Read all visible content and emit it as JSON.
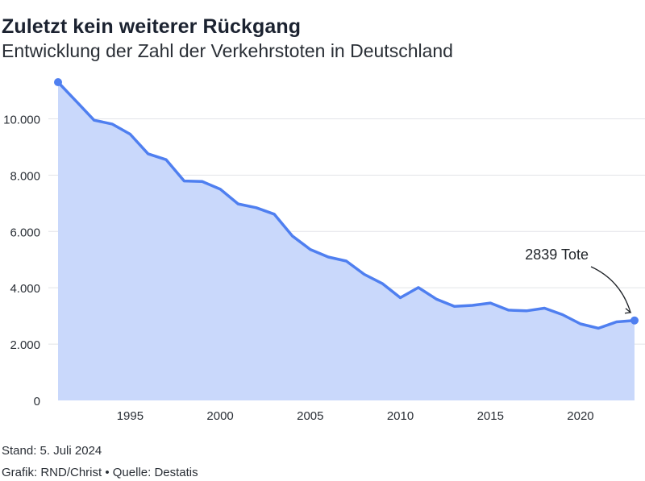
{
  "title": "Zuletzt kein weiterer Rückgang",
  "subtitle": "Entwicklung der Zahl der Verkehrstoten in Deutschland",
  "footer": {
    "stand": "Stand: 5. Juli 2024",
    "credit": "Grafik: RND/Christ • Quelle: Destatis"
  },
  "colors": {
    "line": "#4f7ff0",
    "area": "#c9d8fb",
    "grid": "#e2e4e8",
    "text": "#2a2f36"
  },
  "chart_data": {
    "type": "area",
    "title": "Zuletzt kein weiterer Rückgang",
    "subtitle": "Entwicklung der Zahl der Verkehrstoten in Deutschland",
    "xlabel": "",
    "ylabel": "",
    "x": [
      1991,
      1992,
      1993,
      1994,
      1995,
      1996,
      1997,
      1998,
      1999,
      2000,
      2001,
      2002,
      2003,
      2004,
      2005,
      2006,
      2007,
      2008,
      2009,
      2010,
      2011,
      2012,
      2013,
      2014,
      2015,
      2016,
      2017,
      2018,
      2019,
      2020,
      2021,
      2022,
      2023
    ],
    "series": [
      {
        "values": [
          11300,
          10631,
          9949,
          9814,
          9454,
          8758,
          8549,
          7792,
          7772,
          7503,
          6977,
          6842,
          6613,
          5842,
          5361,
          5091,
          4949,
          4477,
          4152,
          3648,
          4009,
          3600,
          3339,
          3377,
          3459,
          3206,
          3180,
          3275,
          3046,
          2719,
          2562,
          2788,
          2839
        ]
      }
    ],
    "xlim": [
      1991,
      2023
    ],
    "ylim": [
      0,
      11300
    ],
    "xticks": [
      1995,
      2000,
      2005,
      2010,
      2015,
      2020
    ],
    "xtick_labels": [
      "1995",
      "2000",
      "2005",
      "2010",
      "2015",
      "2020"
    ],
    "yticks": [
      0,
      2000,
      4000,
      6000,
      8000,
      10000
    ],
    "ytick_labels": [
      "0",
      "2.000",
      "4.000",
      "6.000",
      "8.000",
      "10.000"
    ],
    "grid": true,
    "legend": "none",
    "annotation": {
      "text": "2839 Tote",
      "x": 2023,
      "y": 2839
    }
  }
}
